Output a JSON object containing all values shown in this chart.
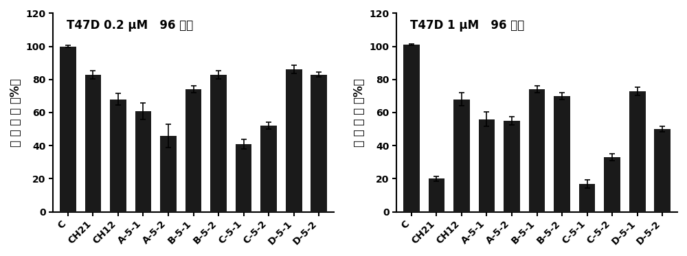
{
  "chart1": {
    "title": "T47D 0.2 μM   96 小时",
    "categories": [
      "C",
      "CH21",
      "CH12",
      "A-5-1",
      "A-5-2",
      "B-5-1",
      "B-5-2",
      "C-5-1",
      "C-5-2",
      "D-5-1",
      "D-5-2"
    ],
    "values": [
      100,
      83,
      68,
      61,
      46,
      74,
      83,
      41,
      52,
      86,
      83
    ],
    "errors": [
      0.5,
      2.5,
      3.5,
      5.0,
      7.0,
      2.0,
      2.5,
      3.0,
      2.0,
      2.5,
      1.5
    ]
  },
  "chart2": {
    "title": "T47D 1 μM   96 小时",
    "categories": [
      "C",
      "CH21",
      "CH12",
      "A-5-1",
      "A-5-2",
      "B-5-1",
      "B-5-2",
      "C-5-1",
      "C-5-2",
      "D-5-1",
      "D-5-2"
    ],
    "values": [
      101,
      20,
      68,
      56,
      55,
      74,
      70,
      17,
      33,
      73,
      50
    ],
    "errors": [
      0.5,
      1.5,
      4.0,
      4.5,
      2.5,
      2.0,
      2.0,
      2.5,
      2.0,
      2.5,
      1.5
    ]
  },
  "bar_color": "#1a1a1a",
  "ylabel": "细 胞 存 活 （%）",
  "ylim": [
    0,
    120
  ],
  "yticks": [
    0,
    20,
    40,
    60,
    80,
    100,
    120
  ],
  "bar_width": 0.65,
  "title_fontsize": 12,
  "ylabel_fontsize": 12,
  "tick_fontsize": 10,
  "background_color": "#ffffff"
}
